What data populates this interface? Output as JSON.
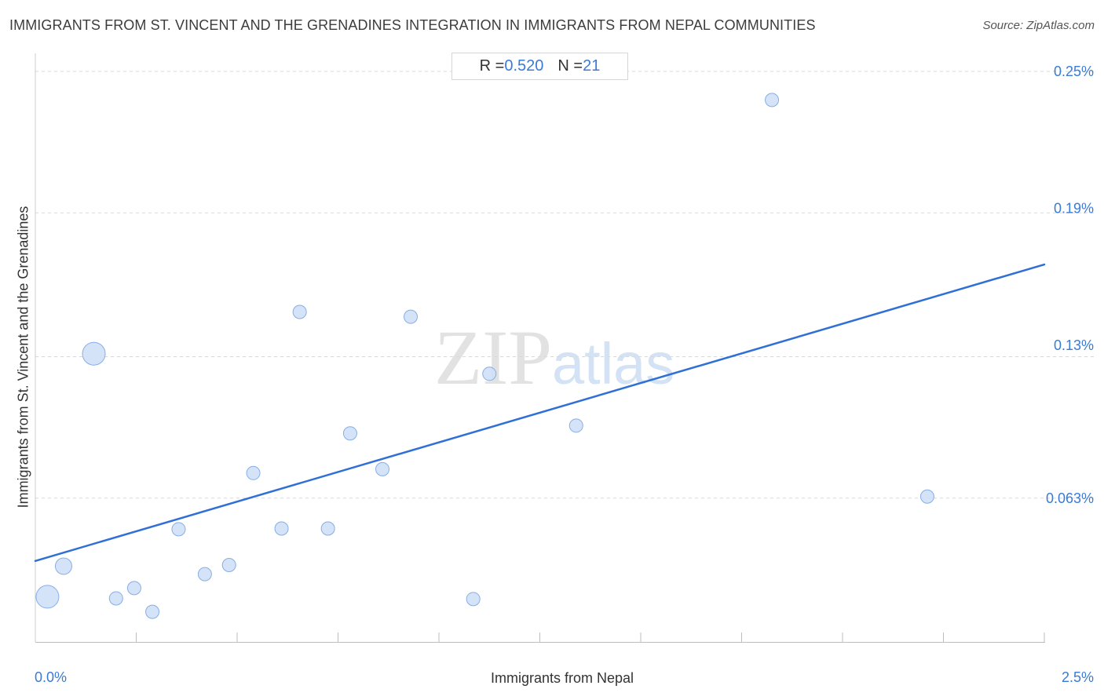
{
  "header": {
    "title": "IMMIGRANTS FROM ST. VINCENT AND THE GRENADINES INTEGRATION IN IMMIGRANTS FROM NEPAL COMMUNITIES",
    "source": "Source: ZipAtlas.com"
  },
  "stats": {
    "r_label": "R = ",
    "r_value": "0.520",
    "n_label": "N = ",
    "n_value": "21"
  },
  "watermark": {
    "zip": "ZIP",
    "atlas": "atlas"
  },
  "colors": {
    "accent": "#3a7bd5",
    "point_fill": "#cfe0f7",
    "point_stroke": "#86aee6",
    "line": "#2f6fd6",
    "grid": "#d9d9d9"
  },
  "chart_data": {
    "type": "scatter",
    "title": "IMMIGRANTS FROM ST. VINCENT AND THE GRENADINES INTEGRATION IN IMMIGRANTS FROM NEPAL COMMUNITIES",
    "xlabel": "Immigrants from Nepal",
    "ylabel": "Immigrants from St. Vincent and the Grenadines",
    "xlim": [
      0,
      2.5
    ],
    "ylim": [
      0,
      0.2555
    ],
    "x_unit": "%",
    "y_unit": "%",
    "x_tick_labels": [
      {
        "value": 0,
        "label": "0.0%"
      },
      {
        "value": 2.5,
        "label": "2.5%"
      }
    ],
    "y_tick_labels": [
      {
        "value": 0.063,
        "label": "0.063%"
      },
      {
        "value": 0.13,
        "label": "0.13%"
      },
      {
        "value": 0.19,
        "label": "0.19%"
      },
      {
        "value": 0.25,
        "label": "0.25%"
      }
    ],
    "y_gridlines": [
      0.063,
      0.125,
      0.188,
      0.25
    ],
    "grid": true,
    "points": [
      {
        "x": 0.03,
        "y": 0.0198,
        "size": "large"
      },
      {
        "x": 0.07,
        "y": 0.0332,
        "size": "medium"
      },
      {
        "x": 0.145,
        "y": 0.1263,
        "size": "large"
      },
      {
        "x": 0.2,
        "y": 0.0191,
        "size": "small"
      },
      {
        "x": 0.245,
        "y": 0.0236,
        "size": "small"
      },
      {
        "x": 0.29,
        "y": 0.0132,
        "size": "small"
      },
      {
        "x": 0.355,
        "y": 0.0494,
        "size": "small"
      },
      {
        "x": 0.42,
        "y": 0.0297,
        "size": "small"
      },
      {
        "x": 0.48,
        "y": 0.0337,
        "size": "small"
      },
      {
        "x": 0.54,
        "y": 0.074,
        "size": "small"
      },
      {
        "x": 0.61,
        "y": 0.0497,
        "size": "small"
      },
      {
        "x": 0.655,
        "y": 0.1446,
        "size": "small"
      },
      {
        "x": 0.725,
        "y": 0.0497,
        "size": "small"
      },
      {
        "x": 0.78,
        "y": 0.0914,
        "size": "small"
      },
      {
        "x": 0.86,
        "y": 0.0757,
        "size": "small"
      },
      {
        "x": 0.93,
        "y": 0.1425,
        "size": "small"
      },
      {
        "x": 1.085,
        "y": 0.0188,
        "size": "small"
      },
      {
        "x": 1.125,
        "y": 0.1175,
        "size": "small"
      },
      {
        "x": 1.34,
        "y": 0.0948,
        "size": "small"
      },
      {
        "x": 1.825,
        "y": 0.2375,
        "size": "small"
      },
      {
        "x": 2.21,
        "y": 0.0637,
        "size": "small"
      }
    ],
    "trendline": {
      "x": [
        0,
        2.5
      ],
      "y": [
        0.0355,
        0.1654
      ]
    },
    "r": 0.52,
    "n": 21
  }
}
